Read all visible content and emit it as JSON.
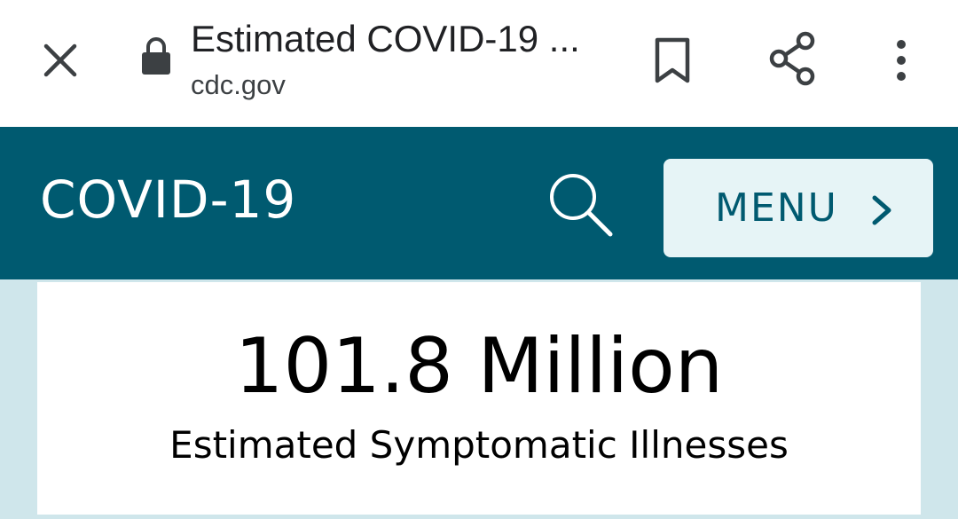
{
  "browser": {
    "title": "Estimated COVID-19 ...",
    "domain": "cdc.gov",
    "close_icon": "close-icon",
    "lock_icon": "lock-icon",
    "bookmark_icon": "bookmark-icon",
    "share_icon": "share-icon",
    "more_icon": "more-vert-icon"
  },
  "header": {
    "title": "COVID-19",
    "search_icon": "search-icon",
    "menu_label": "MENU",
    "menu_icon": "chevron-right-icon"
  },
  "stat": {
    "value": "101.8 Million",
    "label": "Estimated Symptomatic Illnesses"
  },
  "colors": {
    "header_bg": "#005a70",
    "menu_bg": "#e6f4f6",
    "content_bg": "#cfe6eb",
    "chrome_icon": "#3c4043"
  }
}
